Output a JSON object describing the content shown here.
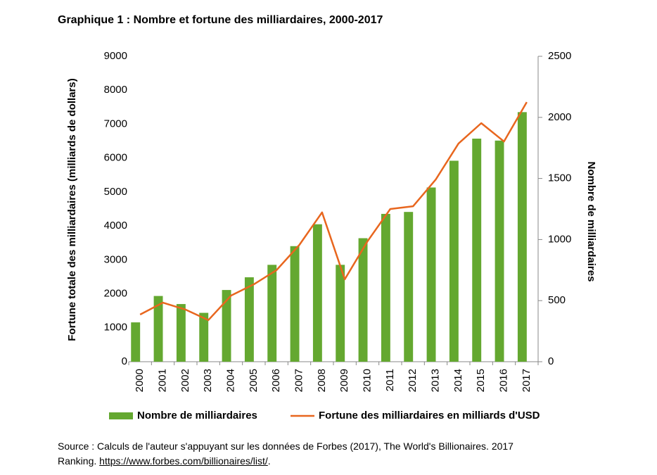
{
  "chart_data": {
    "type": "bar_line",
    "title": "Graphique 1 : Nombre et fortune des milliardaires, 2000-2017",
    "y_label": "Fortune totale des milliardaires (milliards de dollars)",
    "y2_label": "Nombre de milliardaires",
    "categories": [
      "2000",
      "2001",
      "2002",
      "2003",
      "2004",
      "2005",
      "2006",
      "2007",
      "2008",
      "2009",
      "2010",
      "2011",
      "2012",
      "2013",
      "2014",
      "2015",
      "2016",
      "2017"
    ],
    "series": [
      {
        "name": "Nombre de milliardaires",
        "type": "bar",
        "axis": "y2",
        "color": "#64a830",
        "values": [
          322,
          538,
          472,
          400,
          587,
          691,
          793,
          946,
          1125,
          793,
          1011,
          1210,
          1226,
          1426,
          1645,
          1826,
          1810,
          2043
        ]
      },
      {
        "name": "Fortune des milliardaires en milliards d'USD",
        "type": "line",
        "axis": "y",
        "color": "#e8661e",
        "values": [
          1390,
          1740,
          1535,
          1225,
          1950,
          2280,
          2700,
          3440,
          4400,
          2430,
          3550,
          4500,
          4580,
          5370,
          6430,
          7030,
          6490,
          7650
        ]
      }
    ],
    "ylim": [
      0,
      9000
    ],
    "yticks": [
      0,
      1000,
      2000,
      3000,
      4000,
      5000,
      6000,
      7000,
      8000,
      9000
    ],
    "y2lim": [
      0,
      2500
    ],
    "y2ticks": [
      0,
      500,
      1000,
      1500,
      2000,
      2500
    ],
    "legend": "bottom"
  },
  "source": {
    "text": "Source : Calculs de l'auteur s'appuyant sur les données de Forbes (2017), The World's Billionaires. 2017 Ranking.",
    "link": "https://www.forbes.com/billionaires/list/",
    "tail": "."
  }
}
